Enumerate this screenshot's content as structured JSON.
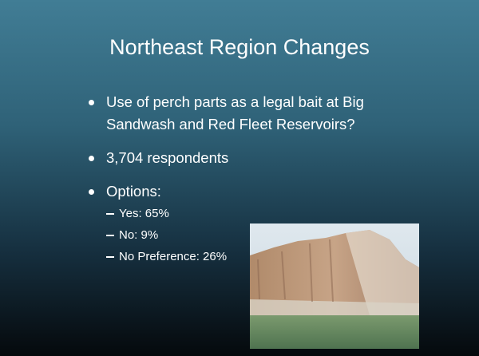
{
  "title": "Northeast Region Changes",
  "bullets": [
    {
      "text": "Use of perch parts as a legal bait at Big Sandwash and Red Fleet Reservoirs?"
    },
    {
      "text": "3,704 respondents"
    },
    {
      "text": "Options:",
      "sub": [
        "Yes: 65%",
        "No: 9%",
        "No Preference: 26%"
      ]
    }
  ]
}
